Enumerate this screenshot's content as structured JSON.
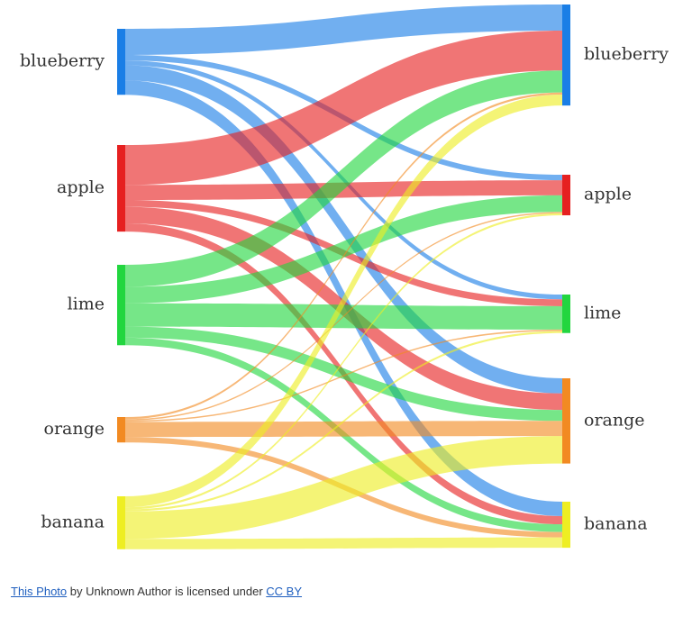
{
  "chart_data": {
    "type": "sankey",
    "sources": [
      {
        "name": "blueberry",
        "color": "#1a7ee6"
      },
      {
        "name": "apple",
        "color": "#e62020"
      },
      {
        "name": "lime",
        "color": "#22d63f"
      },
      {
        "name": "orange",
        "color": "#f28a22"
      },
      {
        "name": "banana",
        "color": "#eeee22"
      }
    ],
    "targets": [
      {
        "name": "blueberry",
        "color": "#1a7ee6"
      },
      {
        "name": "apple",
        "color": "#e62020"
      },
      {
        "name": "lime",
        "color": "#22d63f"
      },
      {
        "name": "orange",
        "color": "#f28a22"
      },
      {
        "name": "banana",
        "color": "#eeee22"
      }
    ],
    "links": [
      {
        "source": "blueberry",
        "target": "blueberry",
        "value": 38
      },
      {
        "source": "blueberry",
        "target": "apple",
        "value": 8
      },
      {
        "source": "blueberry",
        "target": "lime",
        "value": 7
      },
      {
        "source": "blueberry",
        "target": "orange",
        "value": 22
      },
      {
        "source": "blueberry",
        "target": "banana",
        "value": 21
      },
      {
        "source": "apple",
        "target": "blueberry",
        "value": 58
      },
      {
        "source": "apple",
        "target": "apple",
        "value": 22
      },
      {
        "source": "apple",
        "target": "lime",
        "value": 10
      },
      {
        "source": "apple",
        "target": "orange",
        "value": 24
      },
      {
        "source": "apple",
        "target": "banana",
        "value": 12
      },
      {
        "source": "lime",
        "target": "blueberry",
        "value": 32
      },
      {
        "source": "lime",
        "target": "apple",
        "value": 24
      },
      {
        "source": "lime",
        "target": "lime",
        "value": 34
      },
      {
        "source": "lime",
        "target": "orange",
        "value": 16
      },
      {
        "source": "lime",
        "target": "banana",
        "value": 11
      },
      {
        "source": "orange",
        "target": "blueberry",
        "value": 3
      },
      {
        "source": "orange",
        "target": "apple",
        "value": 2
      },
      {
        "source": "orange",
        "target": "lime",
        "value": 2
      },
      {
        "source": "orange",
        "target": "orange",
        "value": 22
      },
      {
        "source": "orange",
        "target": "banana",
        "value": 8
      },
      {
        "source": "banana",
        "target": "blueberry",
        "value": 16
      },
      {
        "source": "banana",
        "target": "apple",
        "value": 3
      },
      {
        "source": "banana",
        "target": "lime",
        "value": 3
      },
      {
        "source": "banana",
        "target": "orange",
        "value": 40
      },
      {
        "source": "banana",
        "target": "banana",
        "value": 15
      }
    ]
  },
  "credit": {
    "photo_link": "This Photo",
    "middle": " by Unknown Author is licensed under ",
    "license_link": "CC BY"
  }
}
